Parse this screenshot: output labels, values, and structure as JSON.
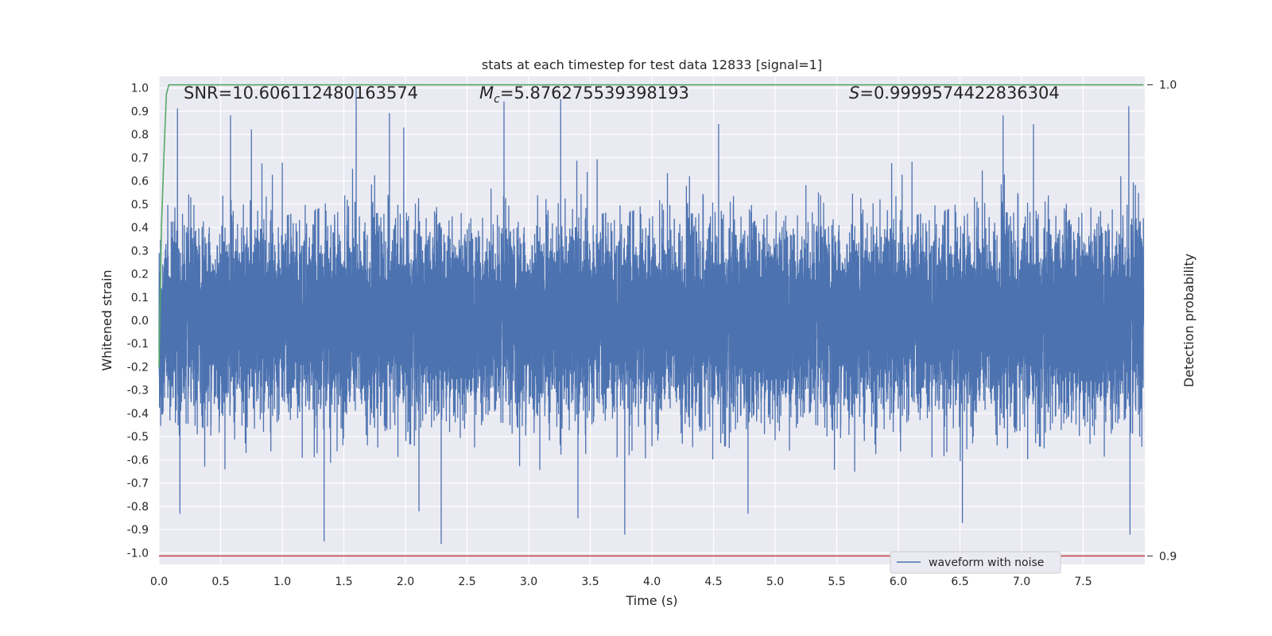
{
  "chart_data": {
    "type": "line",
    "title": "stats at each timestep for test data 12833 [signal=1]",
    "xlabel": "Time (s)",
    "ylabel": "Whitened strain",
    "ylabel_right": "Detection probability",
    "xlim": [
      0.0,
      8.0
    ],
    "ylim": [
      -1.05,
      1.05
    ],
    "ylim_right": [
      0.8982,
      1.0018
    ],
    "x_ticks": [
      "0.0",
      "0.5",
      "1.0",
      "1.5",
      "2.0",
      "2.5",
      "3.0",
      "3.5",
      "4.0",
      "4.5",
      "5.0",
      "5.5",
      "6.0",
      "6.5",
      "7.0",
      "7.5"
    ],
    "y_ticks": [
      "1.0",
      "0.9",
      "0.8",
      "0.7",
      "0.6",
      "0.5",
      "0.4",
      "0.3",
      "0.2",
      "0.1",
      "0.0",
      "-0.1",
      "-0.2",
      "-0.3",
      "-0.4",
      "-0.5",
      "-0.6",
      "-0.7",
      "-0.8",
      "-0.9",
      "-1.0"
    ],
    "y_ticks_right": [
      "1.0",
      "0.9"
    ],
    "grid": true,
    "legend_position": "lower-right",
    "annotations": {
      "snr": "SNR=10.606112480163574",
      "mc_symbol": "M",
      "mc_subscript": "c",
      "mc_value": "=5.876275539398193",
      "s_symbol": "S",
      "s_value": "=0.9999574422836304"
    },
    "series": [
      {
        "name": "waveform with noise",
        "axis": "left",
        "color": "#4c72b0",
        "sample_rate_hz": 2048,
        "envelope": {
          "x": [
            0.0,
            0.5,
            1.0,
            1.5,
            2.0,
            2.5,
            3.0,
            3.5,
            4.0,
            4.5,
            5.0,
            5.5,
            6.0,
            6.5,
            7.0,
            7.5,
            7.99
          ],
          "typical_amplitude": [
            0.45,
            0.45,
            0.45,
            0.47,
            0.46,
            0.44,
            0.45,
            0.46,
            0.45,
            0.47,
            0.45,
            0.46,
            0.45,
            0.46,
            0.47,
            0.46,
            0.5
          ]
        },
        "peaks": [
          {
            "x": 0.15,
            "y": 0.91
          },
          {
            "x": 0.58,
            "y": 0.88
          },
          {
            "x": 0.75,
            "y": 0.82
          },
          {
            "x": 1.6,
            "y": 1.0
          },
          {
            "x": 1.87,
            "y": 0.89
          },
          {
            "x": 2.8,
            "y": 0.94
          },
          {
            "x": 3.26,
            "y": 0.95
          },
          {
            "x": 6.85,
            "y": 0.88
          },
          {
            "x": 7.87,
            "y": 0.92
          },
          {
            "x": 1.34,
            "y": -0.95
          },
          {
            "x": 2.29,
            "y": -0.96
          },
          {
            "x": 0.17,
            "y": -0.83
          },
          {
            "x": 3.78,
            "y": -0.92
          },
          {
            "x": 3.4,
            "y": -0.85
          },
          {
            "x": 6.52,
            "y": -0.87
          },
          {
            "x": 7.88,
            "y": -0.92
          },
          {
            "x": 4.78,
            "y": -0.83
          },
          {
            "x": 2.11,
            "y": -0.82
          }
        ]
      },
      {
        "name": "",
        "axis": "right",
        "color": "#55a868",
        "x": [
          0.0,
          0.02,
          0.04,
          0.06,
          0.08,
          7.99
        ],
        "values": [
          0.94,
          0.97,
          0.985,
          0.998,
          1.0,
          1.0
        ]
      },
      {
        "name": "",
        "axis": "right",
        "color": "#c44e52",
        "x": [
          0.0,
          8.0
        ],
        "values": [
          0.9,
          0.9
        ]
      }
    ]
  }
}
